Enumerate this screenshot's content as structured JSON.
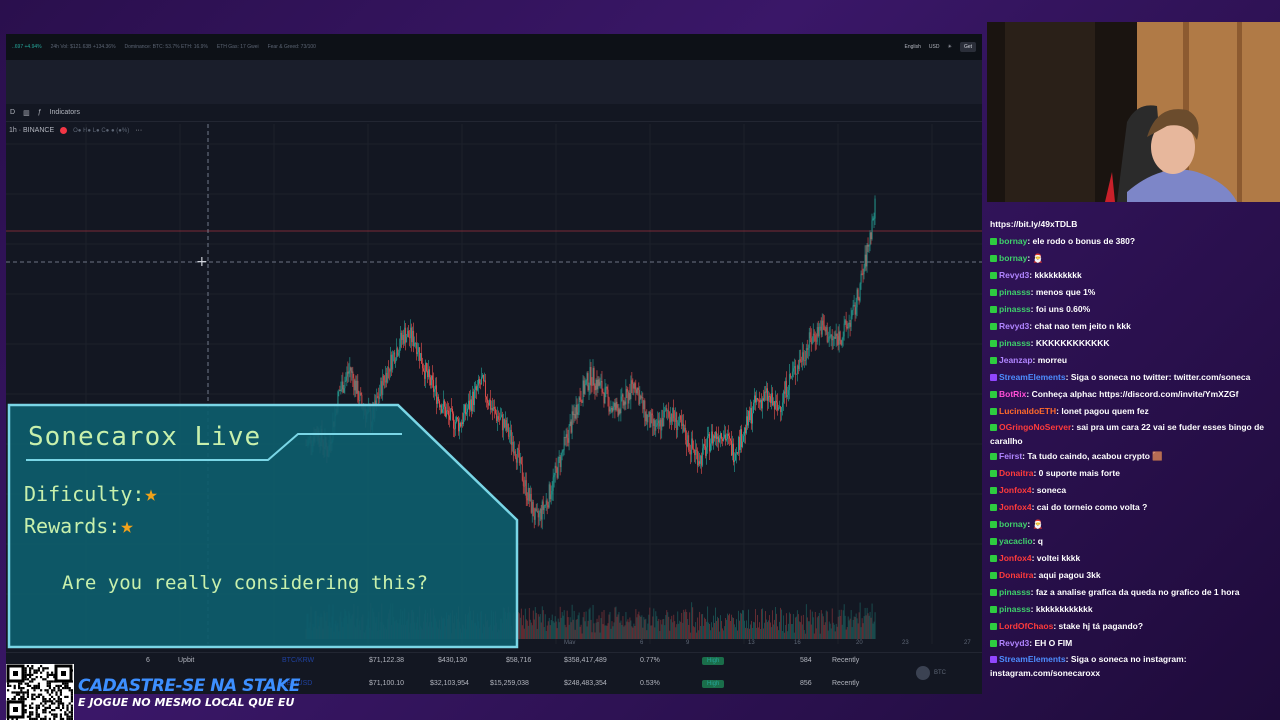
{
  "ticker": {
    "items": [
      "..697 +4.94%",
      "24h Vol: $121.63B +134.36%",
      "Dominance: BTC: 53.7% ETH: 16.9%",
      "ETH Gas: 17 Gwei",
      "Fear & Greed: 73/100"
    ],
    "language": "English",
    "currency": "USD",
    "get_button": "Get"
  },
  "toolbar": {
    "interval": "D",
    "indicators_label": "Indicators"
  },
  "symbol": {
    "name": "1h · BINANCE",
    "ohlc": "O● H● L● C● ● (●%)"
  },
  "chart_data": {
    "type": "line",
    "xlabel": "",
    "ylabel": "",
    "x_tick_labels": [
      "6",
      "9",
      "13",
      "16",
      "20",
      "23",
      "27",
      "May"
    ],
    "series": [
      {
        "values": [
          40,
          44,
          38,
          55,
          62,
          52,
          47,
          58,
          66,
          72,
          70,
          60,
          54,
          48,
          46,
          52,
          58,
          50,
          46,
          40,
          28,
          18,
          24,
          34,
          44,
          54,
          60,
          56,
          50,
          52,
          58,
          48,
          44,
          50,
          46,
          40,
          36,
          42,
          44,
          38,
          44,
          52,
          54,
          50,
          58,
          64,
          70,
          74,
          70,
          72,
          78,
          92,
          110
        ]
      }
    ],
    "colors": {
      "up": "#26a69a",
      "down": "#ef5350"
    }
  },
  "market_rows": [
    {
      "rank": "6",
      "exchange": "Upbit",
      "pair": "BTC/KRW",
      "price": "$71,122.38",
      "depth_plus": "$430,130",
      "depth_minus": "$58,716",
      "volume": "$358,417,489",
      "vol_pct": "0.77%",
      "liquidity": "High",
      "score": "584",
      "updated": "Recently"
    },
    {
      "rank": "",
      "exchange": "",
      "pair": "XBT/USD",
      "price": "$71,100.10",
      "depth_plus": "$32,103,954",
      "depth_minus": "$15,259,038",
      "volume": "$248,483,354",
      "vol_pct": "0.53%",
      "liquidity": "High",
      "score": "856",
      "updated": "Recently"
    }
  ],
  "btc_label": "BTC",
  "panel": {
    "title": "Sonecarox Live",
    "difficulty_label": "Dificulty:",
    "rewards_label": "Rewards:",
    "star": "★",
    "question": "Are you really considering this?"
  },
  "chat": [
    {
      "user": "",
      "msg": "https://bit.ly/49xTDLB",
      "ucolor": "",
      "badge": ""
    },
    {
      "user": "bornay",
      "msg": ": ele rodo o bonus de 380?",
      "ucolor": "u-green",
      "badge": "b-green"
    },
    {
      "user": "bornay",
      "msg": ": 🎅",
      "ucolor": "u-green",
      "badge": "b-green"
    },
    {
      "user": "Revyd3",
      "msg": ": kkkkkkkkkk",
      "ucolor": "u-purple",
      "badge": "b-green"
    },
    {
      "user": "pinasss",
      "msg": ": menos que 1%",
      "ucolor": "u-green",
      "badge": "b-green"
    },
    {
      "user": "pinasss",
      "msg": ": foi uns 0.60%",
      "ucolor": "u-green",
      "badge": "b-green"
    },
    {
      "user": "Revyd3",
      "msg": ": chat nao tem jeito n kkk",
      "ucolor": "u-purple",
      "badge": "b-green"
    },
    {
      "user": "pinasss",
      "msg": ": KKKKKKKKKKKK",
      "ucolor": "u-green",
      "badge": "b-green"
    },
    {
      "user": "Jeanzap",
      "msg": ": morreu",
      "ucolor": "u-purple",
      "badge": "b-green"
    },
    {
      "user": "StreamElements",
      "msg": ": Siga o soneca no twitter: twitter.com/soneca",
      "ucolor": "u-blue",
      "badge": "b-purple"
    },
    {
      "user": "BotRix",
      "msg": ": Conheça alphac https://discord.com/invite/YmXZGf",
      "ucolor": "u-pink",
      "badge": "b-green"
    },
    {
      "user": "LucinaldoETH",
      "msg": ": lonet pagou quem fez",
      "ucolor": "u-orange",
      "badge": "b-green"
    },
    {
      "user": "OGringoNoServer",
      "msg": ": sai pra um cara 22 vai se fuder esses bingo de carallho",
      "ucolor": "u-red",
      "badge": "b-green",
      "wrap": true
    },
    {
      "user": "Feirst",
      "msg": ": Ta tudo caindo, acabou crypto 🟫",
      "ucolor": "u-purple",
      "badge": "b-green"
    },
    {
      "user": "Donaitra",
      "msg": ": 0 suporte mais forte",
      "ucolor": "u-red",
      "badge": "b-green"
    },
    {
      "user": "Jonfox4",
      "msg": ": soneca",
      "ucolor": "u-red",
      "badge": "b-green"
    },
    {
      "user": "Jonfox4",
      "msg": ": cai do torneio como volta ?",
      "ucolor": "u-red",
      "badge": "b-green"
    },
    {
      "user": "bornay",
      "msg": ": 🎅",
      "ucolor": "u-green",
      "badge": "b-green"
    },
    {
      "user": "yacaclio",
      "msg": ": q",
      "ucolor": "u-green",
      "badge": "b-green"
    },
    {
      "user": "Jonfox4",
      "msg": ": voltei kkkk",
      "ucolor": "u-red",
      "badge": "b-green"
    },
    {
      "user": "Donaitra",
      "msg": ": aqui pagou 3kk",
      "ucolor": "u-red",
      "badge": "b-green"
    },
    {
      "user": "pinasss",
      "msg": ": faz a analise grafica da queda no grafico de 1 hora",
      "ucolor": "u-green",
      "badge": "b-green"
    },
    {
      "user": "pinasss",
      "msg": ": kkkkkkkkkkkk",
      "ucolor": "u-green",
      "badge": "b-green"
    },
    {
      "user": "LordOfChaos",
      "msg": ": stake hj tá pagando?",
      "ucolor": "u-red",
      "badge": "b-green"
    },
    {
      "user": "Revyd3",
      "msg": ": EH O FIM",
      "ucolor": "u-purple",
      "badge": "b-green"
    },
    {
      "user": "StreamElements",
      "msg": ": Siga o soneca no instagram: instagram.com/sonecaroxx",
      "ucolor": "u-blue",
      "badge": "b-purple",
      "wrap": true
    }
  ],
  "promo": {
    "line1": "CADASTRE-SE NA STAKE",
    "line2": "E JOGUE NO MESMO LOCAL QUE EU"
  }
}
